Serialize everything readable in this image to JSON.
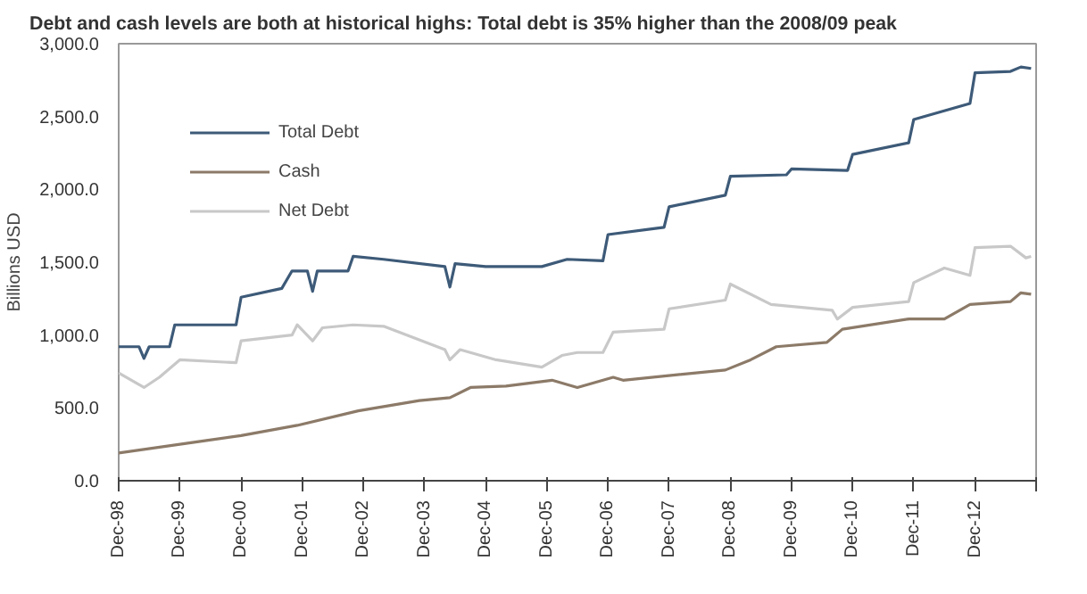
{
  "chart_data": {
    "type": "line",
    "title": "Debt and cash levels are both at historical highs: Total debt is 35% higher than the 2008/09 peak",
    "ylabel": "Billions USD",
    "series": [
      {
        "name": "Total Debt",
        "color": "#3d5a78",
        "x": [
          "1998-12",
          "1999-04",
          "1999-05",
          "1999-06",
          "1999-10",
          "1999-11",
          "2000-11",
          "2000-12",
          "2001-08",
          "2001-10",
          "2002-01",
          "2002-02",
          "2002-03",
          "2002-09",
          "2002-10",
          "2003-04",
          "2004-04",
          "2004-05",
          "2004-06",
          "2004-12",
          "2005-11",
          "2006-04",
          "2006-11",
          "2006-12",
          "2007-11",
          "2007-12",
          "2008-11",
          "2008-12",
          "2009-11",
          "2009-12",
          "2010-11",
          "2010-12",
          "2011-11",
          "2011-12",
          "2012-11",
          "2012-12",
          "2013-07",
          "2013-09",
          "2013-11"
        ],
        "values": [
          920,
          920,
          840,
          920,
          920,
          1070,
          1070,
          1260,
          1320,
          1440,
          1440,
          1300,
          1440,
          1440,
          1540,
          1520,
          1470,
          1330,
          1490,
          1470,
          1470,
          1520,
          1510,
          1690,
          1740,
          1880,
          1960,
          2090,
          2100,
          2140,
          2130,
          2240,
          2320,
          2480,
          2590,
          2800,
          2810,
          2840,
          2830
        ]
      },
      {
        "name": "Cash",
        "color": "#8c7a68",
        "x": [
          "1998-12",
          "2000-04",
          "2000-12",
          "2001-11",
          "2002-11",
          "2003-11",
          "2004-05",
          "2004-09",
          "2005-04",
          "2006-01",
          "2006-06",
          "2007-01",
          "2007-03",
          "2008-11",
          "2009-04",
          "2009-09",
          "2010-07",
          "2010-10",
          "2011-11",
          "2012-06",
          "2012-11",
          "2013-07",
          "2013-09",
          "2013-11"
        ],
        "values": [
          190,
          270,
          310,
          380,
          480,
          550,
          570,
          640,
          650,
          690,
          640,
          710,
          690,
          760,
          830,
          920,
          950,
          1040,
          1110,
          1110,
          1210,
          1230,
          1290,
          1280
        ]
      },
      {
        "name": "Net Debt",
        "color": "#c8c8c8",
        "x": [
          "1998-12",
          "1999-05",
          "1999-08",
          "1999-12",
          "2000-11",
          "2000-12",
          "2001-10",
          "2001-11",
          "2002-02",
          "2002-04",
          "2002-10",
          "2003-04",
          "2004-04",
          "2004-05",
          "2004-07",
          "2005-02",
          "2005-11",
          "2006-03",
          "2006-06",
          "2006-11",
          "2007-01",
          "2007-11",
          "2007-12",
          "2008-11",
          "2008-12",
          "2009-08",
          "2010-08",
          "2010-09",
          "2010-12",
          "2011-11",
          "2011-12",
          "2012-06",
          "2012-11",
          "2012-12",
          "2013-07",
          "2013-10",
          "2013-11"
        ],
        "values": [
          740,
          640,
          710,
          830,
          810,
          960,
          1000,
          1070,
          960,
          1050,
          1070,
          1060,
          900,
          830,
          900,
          830,
          780,
          860,
          880,
          880,
          1020,
          1040,
          1180,
          1240,
          1350,
          1210,
          1170,
          1110,
          1190,
          1230,
          1360,
          1460,
          1410,
          1600,
          1610,
          1530,
          1540
        ]
      }
    ],
    "xlim": [
      "1998-12",
      "2013-12"
    ],
    "xticks": [
      {
        "value": "1998-12",
        "label": "Dec-98"
      },
      {
        "value": "1999-12",
        "label": "Dec-99"
      },
      {
        "value": "2000-12",
        "label": "Dec-00"
      },
      {
        "value": "2001-12",
        "label": "Dec-01"
      },
      {
        "value": "2002-12",
        "label": "Dec-02"
      },
      {
        "value": "2003-12",
        "label": "Dec-03"
      },
      {
        "value": "2004-12",
        "label": "Dec-04"
      },
      {
        "value": "2005-12",
        "label": "Dec-05"
      },
      {
        "value": "2006-12",
        "label": "Dec-06"
      },
      {
        "value": "2007-12",
        "label": "Dec-07"
      },
      {
        "value": "2008-12",
        "label": "Dec-08"
      },
      {
        "value": "2009-12",
        "label": "Dec-09"
      },
      {
        "value": "2010-12",
        "label": "Dec-10"
      },
      {
        "value": "2011-12",
        "label": "Dec-11"
      },
      {
        "value": "2012-12",
        "label": "Dec-12"
      },
      {
        "value": "2013-12",
        "label": null
      }
    ],
    "ylim": [
      0,
      3000
    ],
    "yticks": [
      {
        "value": 0,
        "label": "0.0"
      },
      {
        "value": 500,
        "label": "500.0"
      },
      {
        "value": 1000,
        "label": "1,000.0"
      },
      {
        "value": 1500,
        "label": "1,500.0"
      },
      {
        "value": 2000,
        "label": "2,000.0"
      },
      {
        "value": 2500,
        "label": "2,500.0"
      },
      {
        "value": 3000,
        "label": "3,000.0"
      }
    ],
    "grid": false,
    "legend": "top left",
    "line_style": "solid"
  }
}
